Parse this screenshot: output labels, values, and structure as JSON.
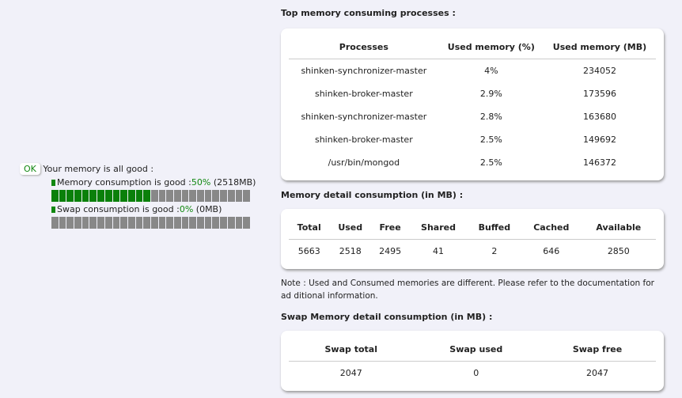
{
  "status": {
    "badge": "OK",
    "message": "Your memory is all good :",
    "memory": {
      "label": "Memory consumption is good : ",
      "percent": "50%",
      "amount": "(2518MB)",
      "fill_percent": 50
    },
    "swap": {
      "label": "Swap consumption is good : ",
      "percent": "0%",
      "amount": "(0MB)",
      "fill_percent": 0
    }
  },
  "processes": {
    "title": "Top memory consuming processes :",
    "headers": [
      "Processes",
      "Used memory (%)",
      "Used memory (MB)"
    ],
    "rows": [
      [
        "shinken-synchronizer-master",
        "4%",
        "234052"
      ],
      [
        "shinken-broker-master",
        "2.9%",
        "173596"
      ],
      [
        "shinken-synchronizer-master",
        "2.8%",
        "163680"
      ],
      [
        "shinken-broker-master",
        "2.5%",
        "149692"
      ],
      [
        "/usr/bin/mongod",
        "2.5%",
        "146372"
      ]
    ]
  },
  "memory_detail": {
    "title": "Memory detail consumption (in MB) :",
    "headers": [
      "Total",
      "Used",
      "Free",
      "Shared",
      "Buffed",
      "Cached",
      "Available"
    ],
    "values": [
      "5663",
      "2518",
      "2495",
      "41",
      "2",
      "646",
      "2850"
    ]
  },
  "note": "Note : Used and Consumed memories are different. Please refer to the documentation for ad ditional information.",
  "swap_detail": {
    "title": "Swap Memory detail consumption (in MB) :",
    "headers": [
      "Swap total",
      "Swap used",
      "Swap free"
    ],
    "values": [
      "2047",
      "0",
      "2047"
    ]
  },
  "colors": {
    "good": "#118811",
    "bar_empty": "#888888",
    "background": "#f1f1f9"
  }
}
